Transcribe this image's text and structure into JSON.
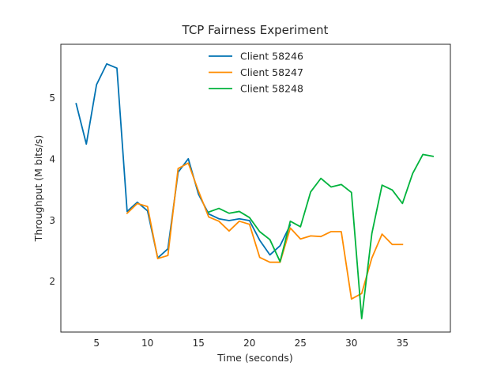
{
  "chart_data": {
    "type": "line",
    "title": "TCP Fairness Experiment",
    "xlabel": "Time (seconds)",
    "ylabel": "Throughput (M bits/s)",
    "xlim": [
      1.5,
      39.7
    ],
    "ylim": [
      1.17,
      5.87
    ],
    "xticks": [
      5,
      10,
      15,
      20,
      25,
      30,
      35
    ],
    "yticks": [
      2,
      3,
      4,
      5
    ],
    "grid": false,
    "legend_position": "upper-center",
    "series": [
      {
        "name": "Client 58246",
        "color": "#0072b2",
        "x": [
          3,
          4,
          5,
          6,
          7,
          8,
          9,
          10,
          11,
          12,
          13,
          14,
          15,
          16,
          17,
          18,
          19,
          20,
          21,
          22,
          23,
          24
        ],
        "y": [
          4.9,
          4.24,
          5.21,
          5.55,
          5.48,
          3.14,
          3.29,
          3.15,
          2.38,
          2.53,
          3.78,
          4.0,
          3.42,
          3.1,
          3.02,
          2.99,
          3.02,
          2.99,
          2.67,
          2.43,
          2.58,
          2.92
        ]
      },
      {
        "name": "Client 58247",
        "color": "#ff8c00",
        "x": [
          8,
          9,
          10,
          11,
          12,
          13,
          14,
          15,
          16,
          17,
          18,
          19,
          20,
          21,
          22,
          23,
          24,
          25,
          26,
          27,
          28,
          29,
          30,
          31,
          32,
          33,
          34,
          35
        ],
        "y": [
          3.11,
          3.27,
          3.22,
          2.37,
          2.42,
          3.84,
          3.93,
          3.47,
          3.05,
          2.98,
          2.82,
          2.98,
          2.93,
          2.39,
          2.31,
          2.31,
          2.87,
          2.69,
          2.74,
          2.73,
          2.81,
          2.81,
          1.71,
          1.8,
          2.38,
          2.77,
          2.6,
          2.6
        ]
      },
      {
        "name": "Client 58248",
        "color": "#00b33c",
        "x": [
          16,
          17,
          18,
          19,
          20,
          21,
          22,
          23,
          24,
          25,
          26,
          27,
          28,
          29,
          30,
          31,
          32,
          33,
          34,
          35,
          36,
          37,
          38
        ],
        "y": [
          3.13,
          3.19,
          3.11,
          3.14,
          3.04,
          2.81,
          2.68,
          2.32,
          2.98,
          2.89,
          3.46,
          3.68,
          3.54,
          3.58,
          3.45,
          1.39,
          2.78,
          3.57,
          3.49,
          3.27,
          3.76,
          4.07,
          4.04
        ]
      }
    ]
  }
}
